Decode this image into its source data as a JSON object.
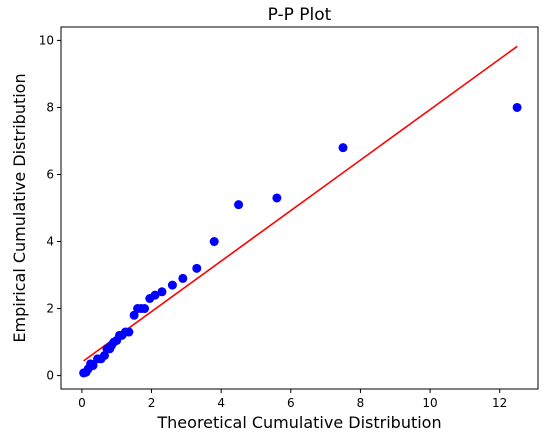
{
  "chart_data": {
    "type": "scatter",
    "title": "P-P Plot",
    "xlabel": "Theoretical Cumulative Distribution",
    "ylabel": "Empirical Cumulative Distribution",
    "xlim": [
      -0.6,
      13.1
    ],
    "ylim": [
      -0.4,
      10.4
    ],
    "xticks": [
      0,
      2,
      4,
      6,
      8,
      10,
      12
    ],
    "yticks": [
      0,
      2,
      4,
      6,
      8,
      10
    ],
    "grid": false,
    "colors": {
      "points": "#0000ff",
      "line": "#ff0000",
      "axis": "#000000"
    },
    "points": {
      "x": [
        0.05,
        0.12,
        0.18,
        0.25,
        0.32,
        0.45,
        0.55,
        0.65,
        0.72,
        0.8,
        0.85,
        0.92,
        1.0,
        1.08,
        1.15,
        1.25,
        1.35,
        1.5,
        1.6,
        1.7,
        1.8,
        1.95,
        2.1,
        2.3,
        2.6,
        2.9,
        3.3,
        3.8,
        4.5,
        5.6,
        7.5,
        12.5
      ],
      "y": [
        0.08,
        0.1,
        0.2,
        0.35,
        0.3,
        0.5,
        0.5,
        0.6,
        0.8,
        0.8,
        0.9,
        1.0,
        1.05,
        1.2,
        1.2,
        1.3,
        1.3,
        1.8,
        2.0,
        2.0,
        2.0,
        2.3,
        2.4,
        2.5,
        2.7,
        2.9,
        3.2,
        4.0,
        5.1,
        5.3,
        6.8,
        8.0
      ]
    },
    "reference_line": {
      "x": [
        0.05,
        12.5
      ],
      "y": [
        0.44,
        9.82
      ]
    }
  }
}
